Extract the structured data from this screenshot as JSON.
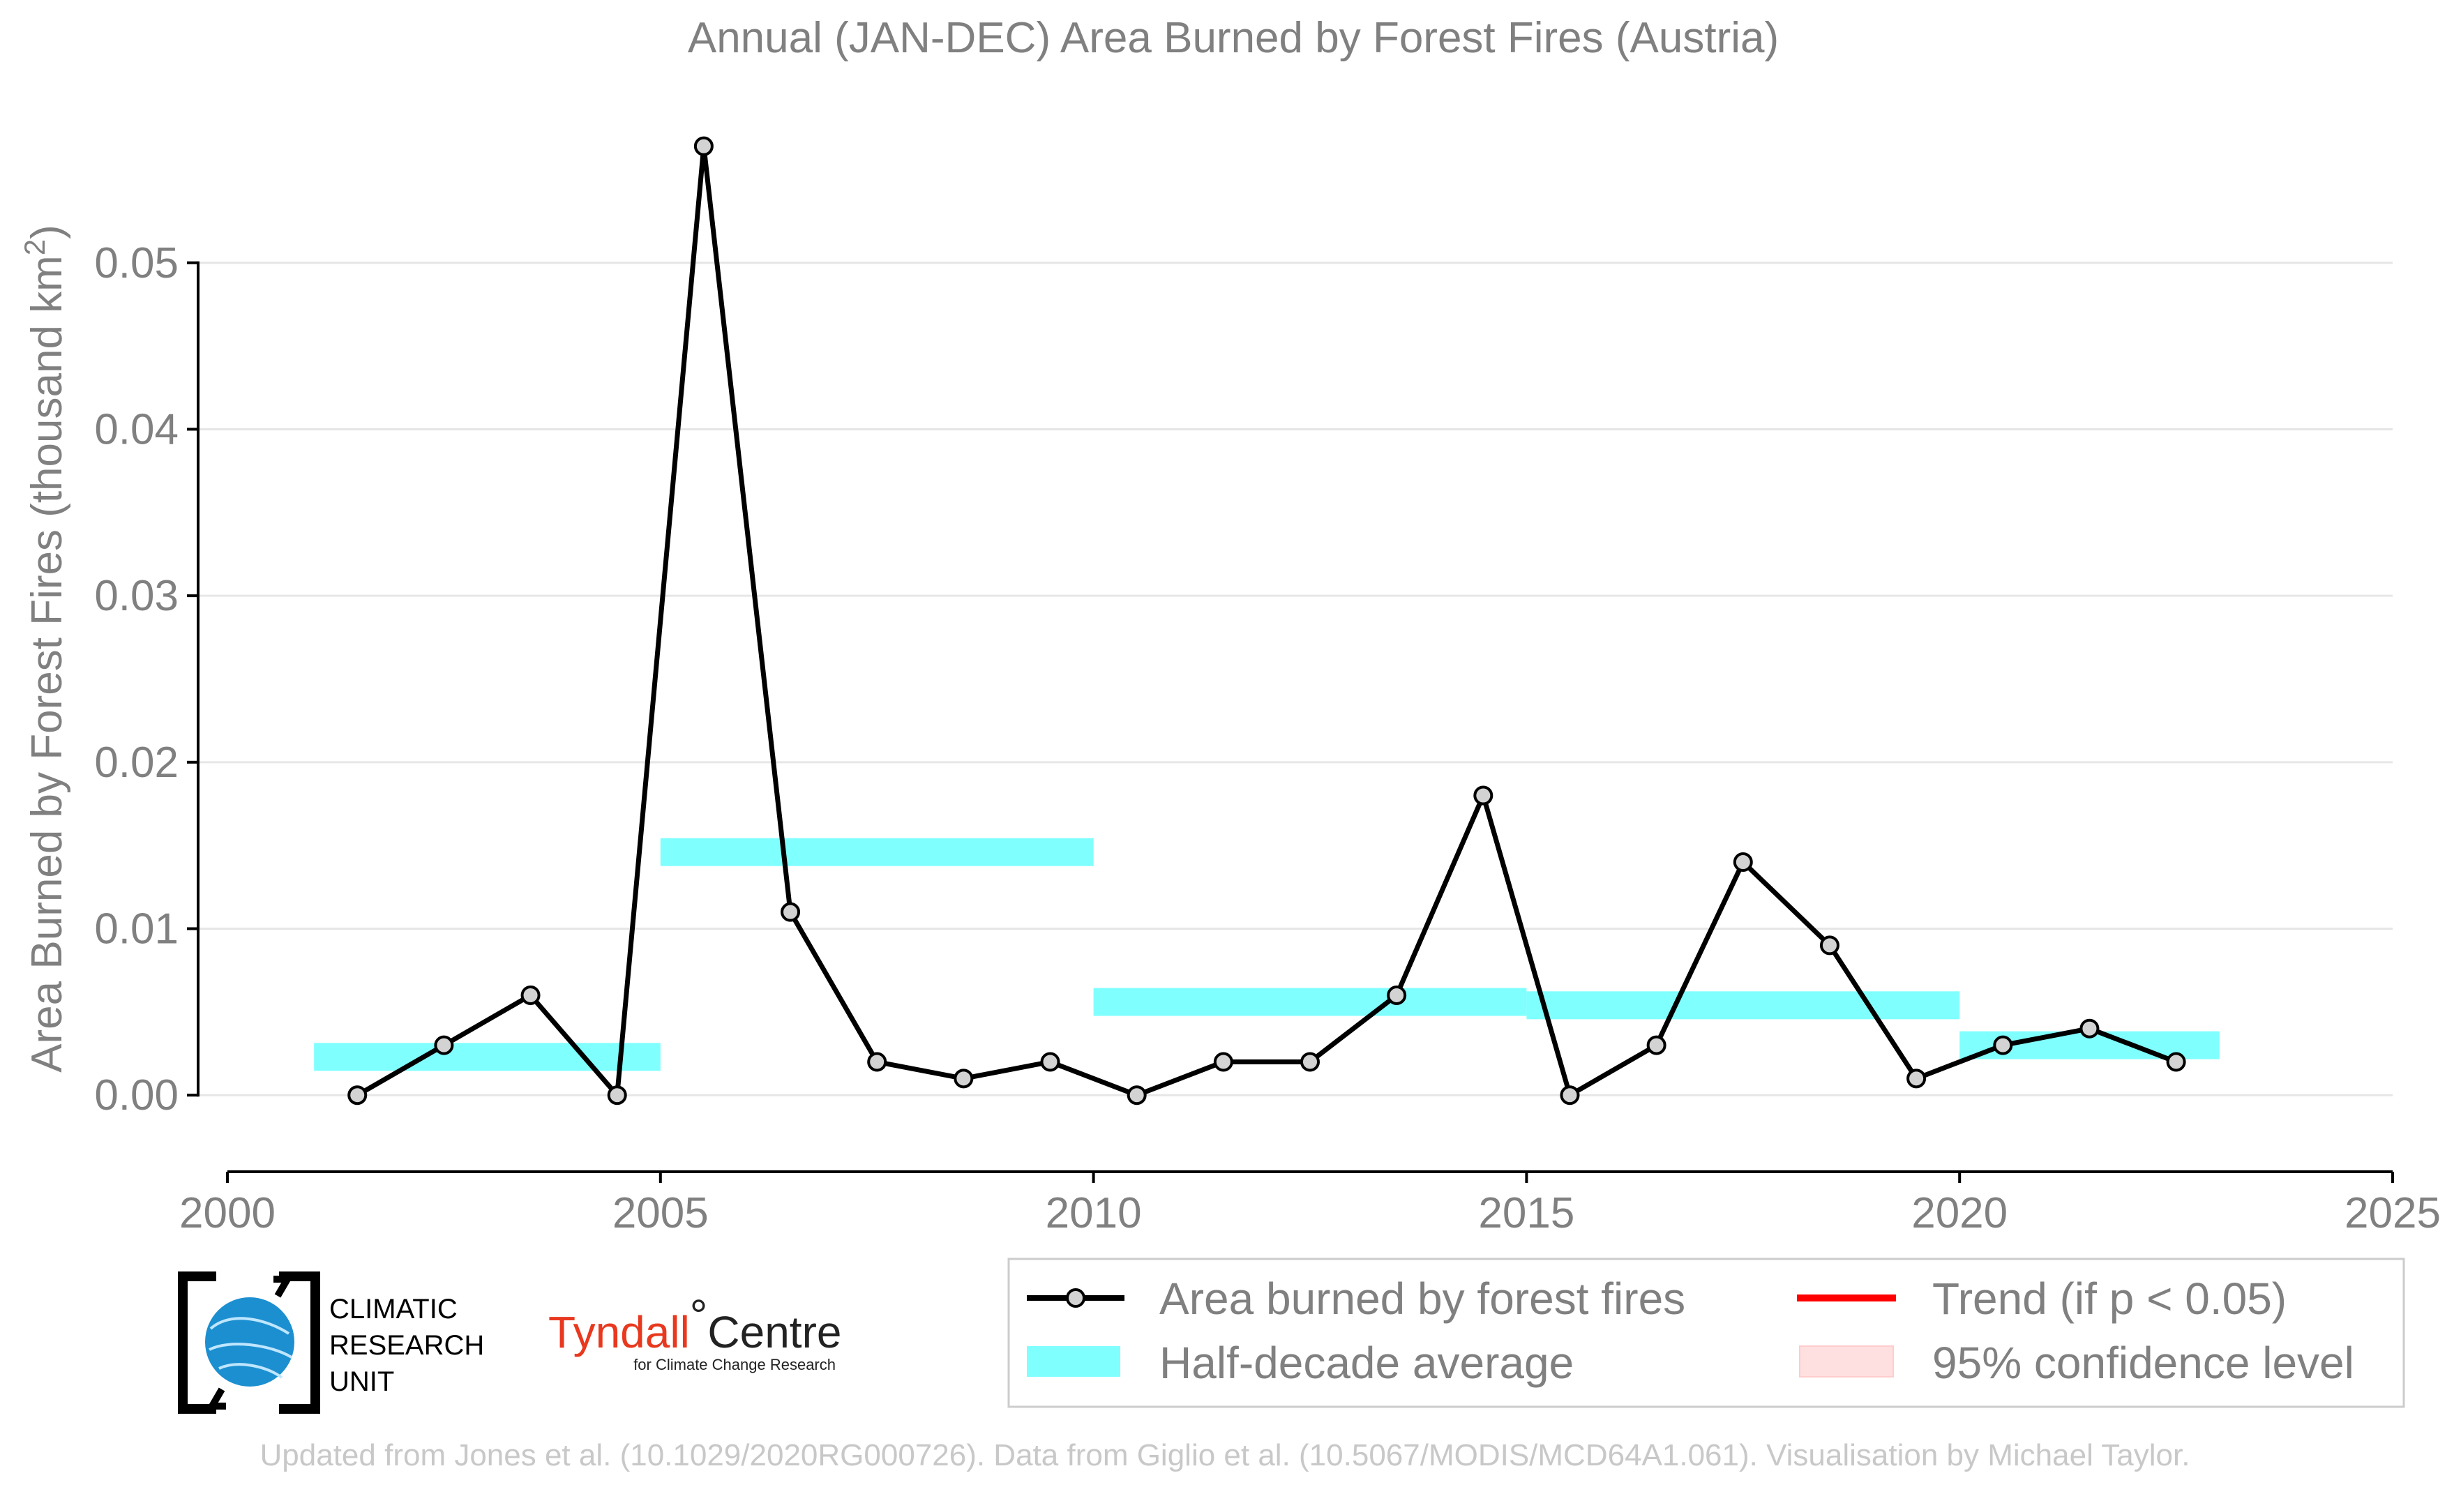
{
  "chart_data": {
    "type": "line",
    "title": "Annual (JAN-DEC) Area Burned by Forest Fires (Austria)",
    "xlabel": "",
    "ylabel": "Area Burned by Forest Fires (thousand km",
    "ylabel_sup": "2",
    "ylabel_close": ")",
    "xlim": [
      2000,
      2025
    ],
    "ylim": [
      -0.0046,
      0.0595
    ],
    "x_ticks": [
      2000,
      2005,
      2010,
      2015,
      2020,
      2025
    ],
    "y_ticks": [
      0.0,
      0.01,
      0.02,
      0.03,
      0.04,
      0.05
    ],
    "y_tick_labels": [
      "0.00",
      "0.01",
      "0.02",
      "0.03",
      "0.04",
      "0.05"
    ],
    "grid": "horizontal",
    "series": [
      {
        "name": "Area burned by forest fires",
        "color": "#000000",
        "marker_fill": "#d3d3d3",
        "x": [
          2001.5,
          2002.5,
          2003.5,
          2004.5,
          2005.5,
          2006.5,
          2007.5,
          2008.5,
          2009.5,
          2010.5,
          2011.5,
          2012.5,
          2013.5,
          2014.5,
          2015.5,
          2016.5,
          2017.5,
          2018.5,
          2019.5,
          2020.5,
          2021.5,
          2022.5
        ],
        "values": [
          0.0,
          0.003,
          0.006,
          0.0,
          0.057,
          0.011,
          0.002,
          0.001,
          0.002,
          0.0,
          0.002,
          0.002,
          0.006,
          0.018,
          0.0,
          0.003,
          0.014,
          0.009,
          0.001,
          0.003,
          0.004,
          0.002
        ]
      }
    ],
    "half_decade_average": {
      "name": "Half-decade average",
      "color": "#80ffff",
      "segments": [
        {
          "x0": 2001,
          "x1": 2005,
          "value": 0.0023
        },
        {
          "x0": 2005,
          "x1": 2010,
          "value": 0.0146
        },
        {
          "x0": 2010,
          "x1": 2015,
          "value": 0.0056
        },
        {
          "x0": 2015,
          "x1": 2020,
          "value": 0.0054
        },
        {
          "x0": 2020,
          "x1": 2023,
          "value": 0.003
        }
      ]
    },
    "legend": {
      "placement": "bottom-right",
      "items": [
        {
          "label": "Area burned by forest fires",
          "kind": "line-marker"
        },
        {
          "label": "Trend (if p < 0.05)",
          "kind": "line",
          "color": "#ff0000"
        },
        {
          "label": "Half-decade average",
          "kind": "patch",
          "color": "#80ffff"
        },
        {
          "label": "95% confidence level",
          "kind": "patch",
          "color": "#ffe0e0"
        }
      ]
    }
  },
  "logos": {
    "cru_lines": [
      "CLIMATIC",
      "RESEARCH",
      "UNIT"
    ],
    "tyndall_name": "Tyndall",
    "tyndall_degree": "°",
    "tyndall_centre": "Centre",
    "tyndall_sub": "for Climate Change Research"
  },
  "footer": "Updated from Jones et al. (10.1029/2020RG000726). Data from Giglio et al. (10.5067/MODIS/MCD64A1.061). Visualisation by Michael Taylor."
}
